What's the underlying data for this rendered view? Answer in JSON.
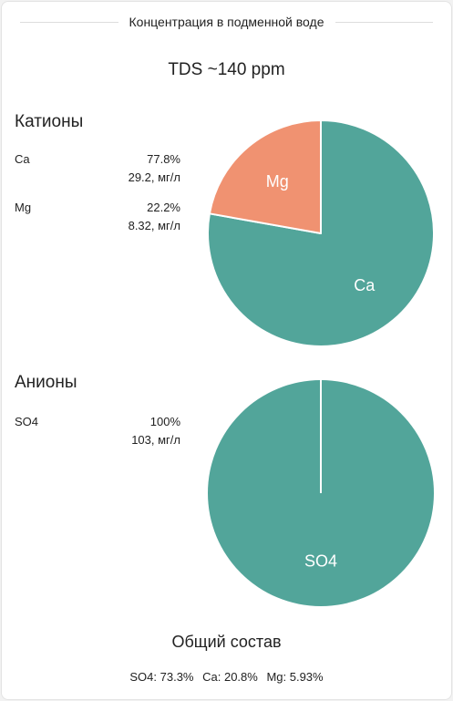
{
  "header": {
    "title": "Концентрация в подменной воде"
  },
  "tds": "TDS ~140 ppm",
  "colors": {
    "teal": "#52a59a",
    "salmon": "#f09271"
  },
  "cations": {
    "title": "Катионы",
    "items": [
      {
        "name": "Ca",
        "percent": "77.8%",
        "amount": "29.2, мг/л"
      },
      {
        "name": "Mg",
        "percent": "22.2%",
        "amount": "8.32, мг/л"
      }
    ]
  },
  "anions": {
    "title": "Анионы",
    "items": [
      {
        "name": "SO4",
        "percent": "100%",
        "amount": "103, мг/л"
      }
    ]
  },
  "chart_data": [
    {
      "type": "pie",
      "labels": [
        "Ca",
        "Mg"
      ],
      "values": [
        77.8,
        22.2
      ],
      "colors": [
        "#52a59a",
        "#f09271"
      ]
    },
    {
      "type": "pie",
      "labels": [
        "SO4"
      ],
      "values": [
        100
      ],
      "colors": [
        "#52a59a"
      ]
    }
  ],
  "summary": {
    "title": "Общий состав",
    "items": [
      "SO4: 73.3%",
      "Ca: 20.8%",
      "Mg: 5.93%"
    ]
  }
}
